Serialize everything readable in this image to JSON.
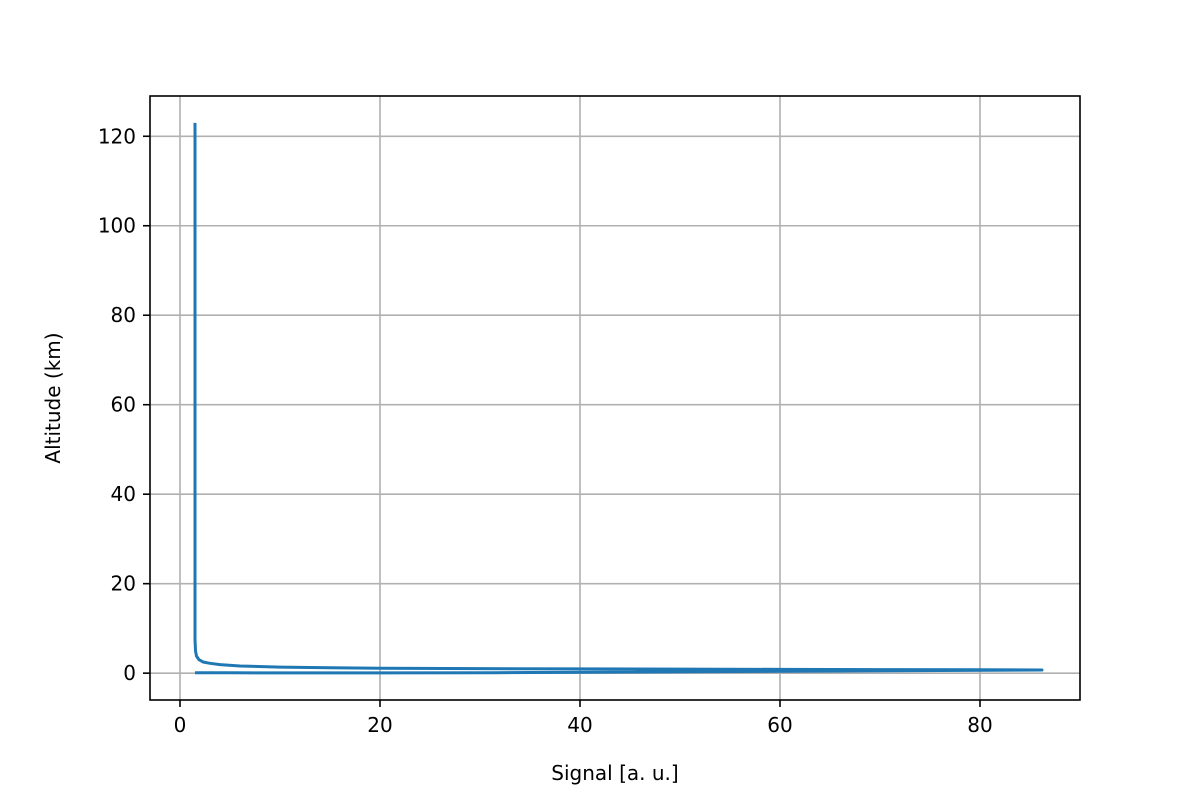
{
  "chart_data": {
    "type": "line",
    "title": "",
    "xlabel": "Signal [a. u.]",
    "ylabel": "Altitude (km)",
    "xlim": [
      -3,
      90
    ],
    "ylim": [
      -6,
      129
    ],
    "xticks": [
      0,
      20,
      40,
      60,
      80
    ],
    "yticks": [
      0,
      20,
      40,
      60,
      80,
      100,
      120
    ],
    "grid": true,
    "series": [
      {
        "color": "#1f77b4",
        "x": [
          1.5,
          1.5,
          1.5,
          1.5,
          1.55,
          1.65,
          1.9,
          2.3,
          3,
          4,
          6,
          10,
          15,
          20,
          30,
          40,
          50,
          60,
          70,
          80,
          86.2,
          31.5,
          20,
          10,
          5,
          1.5
        ],
        "y": [
          123,
          60,
          20,
          7.5,
          5,
          3.8,
          3,
          2.5,
          2.2,
          1.9,
          1.6,
          1.35,
          1.2,
          1.1,
          1.0,
          0.95,
          0.9,
          0.85,
          0.8,
          0.75,
          0.7,
          0.1,
          0.05,
          0.05,
          0.1,
          0.1
        ]
      }
    ]
  }
}
